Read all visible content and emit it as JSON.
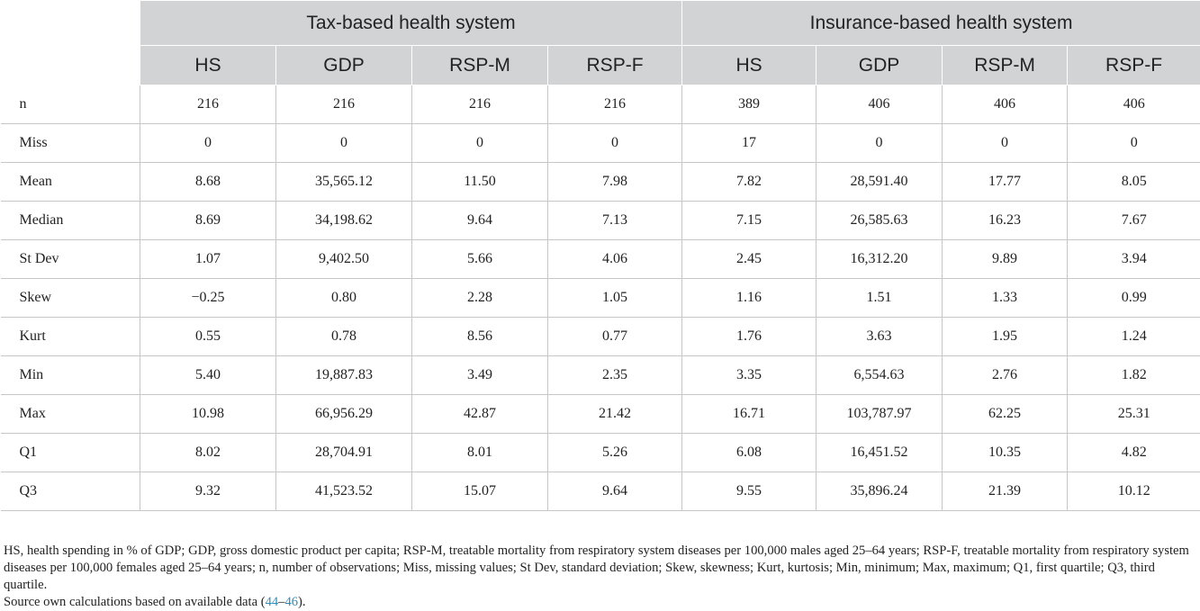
{
  "table": {
    "groups": [
      {
        "label": "Tax-based health system"
      },
      {
        "label": "Insurance-based health system"
      }
    ],
    "columns": [
      "HS",
      "GDP",
      "RSP-M",
      "RSP-F",
      "HS",
      "GDP",
      "RSP-M",
      "RSP-F"
    ],
    "rows": [
      {
        "label": "n",
        "values": [
          "216",
          "216",
          "216",
          "216",
          "389",
          "406",
          "406",
          "406"
        ]
      },
      {
        "label": "Miss",
        "values": [
          "0",
          "0",
          "0",
          "0",
          "17",
          "0",
          "0",
          "0"
        ]
      },
      {
        "label": "Mean",
        "values": [
          "8.68",
          "35,565.12",
          "11.50",
          "7.98",
          "7.82",
          "28,591.40",
          "17.77",
          "8.05"
        ]
      },
      {
        "label": "Median",
        "values": [
          "8.69",
          "34,198.62",
          "9.64",
          "7.13",
          "7.15",
          "26,585.63",
          "16.23",
          "7.67"
        ]
      },
      {
        "label": "St Dev",
        "values": [
          "1.07",
          "9,402.50",
          "5.66",
          "4.06",
          "2.45",
          "16,312.20",
          "9.89",
          "3.94"
        ]
      },
      {
        "label": "Skew",
        "values": [
          "−0.25",
          "0.80",
          "2.28",
          "1.05",
          "1.16",
          "1.51",
          "1.33",
          "0.99"
        ]
      },
      {
        "label": "Kurt",
        "values": [
          "0.55",
          "0.78",
          "8.56",
          "0.77",
          "1.76",
          "3.63",
          "1.95",
          "1.24"
        ]
      },
      {
        "label": "Min",
        "values": [
          "5.40",
          "19,887.83",
          "3.49",
          "2.35",
          "3.35",
          "6,554.63",
          "2.76",
          "1.82"
        ]
      },
      {
        "label": "Max",
        "values": [
          "10.98",
          "66,956.29",
          "42.87",
          "21.42",
          "16.71",
          "103,787.97",
          "62.25",
          "25.31"
        ]
      },
      {
        "label": "Q1",
        "values": [
          "8.02",
          "28,704.91",
          "8.01",
          "5.26",
          "6.08",
          "16,451.52",
          "10.35",
          "4.82"
        ]
      },
      {
        "label": "Q3",
        "values": [
          "9.32",
          "41,523.52",
          "15.07",
          "9.64",
          "9.55",
          "35,896.24",
          "21.39",
          "10.12"
        ]
      }
    ]
  },
  "footnote": {
    "abbreviations": "HS, health spending in % of GDP; GDP, gross domestic product per capita; RSP-M, treatable mortality from respiratory system diseases per 100,000 males aged 25–64 years; RSP-F, treatable mortality from respiratory system diseases per 100,000 females aged 25–64 years; n, number of observations; Miss, missing values; St Dev, standard deviation; Skew, skewness; Kurt, kurtosis; Min, minimum; Max, maximum; Q1, first quartile; Q3, third quartile.",
    "source_prefix": "Source own calculations based on available data (",
    "ref_start": "44",
    "ref_dash": "–",
    "ref_end": "46",
    "source_suffix": ")."
  },
  "colors": {
    "header_bg": "#d1d3d4",
    "grid": "#c4c6c8",
    "link": "#2d8bb8"
  }
}
